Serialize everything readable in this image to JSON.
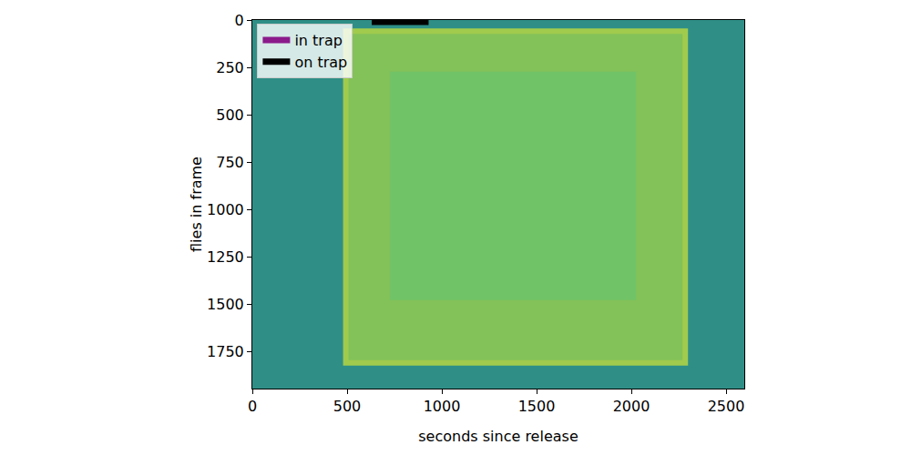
{
  "chart_data": {
    "type": "line",
    "x_label": "seconds since release",
    "y_label": "flies in frame",
    "x": [
      630,
      930
    ],
    "series": [
      {
        "name": "in trap",
        "color": "#8b1a8b",
        "values": [
          null,
          null
        ]
      },
      {
        "name": "on trap",
        "color": "#000000",
        "values": [
          10,
          10
        ]
      }
    ],
    "xlim": [
      0,
      2596
    ],
    "ylim": [
      1947,
      0
    ],
    "xticks": [
      0,
      500,
      1000,
      1500,
      2000,
      2500
    ],
    "yticks": [
      0,
      250,
      500,
      750,
      1000,
      1250,
      1500,
      1750
    ],
    "grid": false,
    "legend": "upper left"
  }
}
